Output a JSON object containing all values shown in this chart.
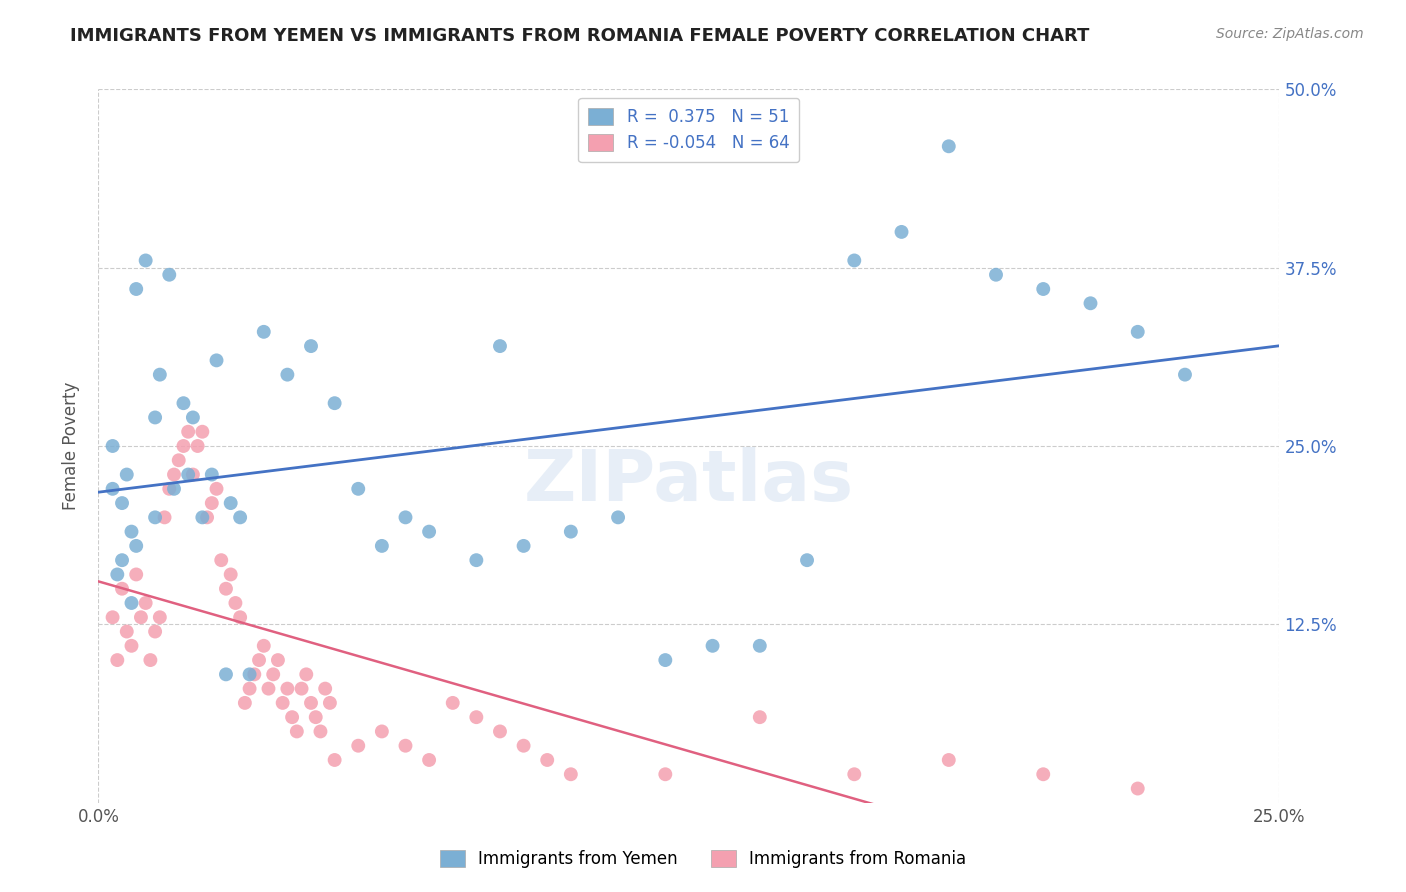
{
  "title": "IMMIGRANTS FROM YEMEN VS IMMIGRANTS FROM ROMANIA FEMALE POVERTY CORRELATION CHART",
  "source": "Source: ZipAtlas.com",
  "ylabel_label": "Female Poverty",
  "xlim": [
    0,
    0.25
  ],
  "ylim": [
    0,
    0.5
  ],
  "ytick_values": [
    0.125,
    0.25,
    0.375,
    0.5
  ],
  "xtick_values": [
    0.0,
    0.25
  ],
  "grid_color": "#cccccc",
  "background_color": "#ffffff",
  "watermark": "ZIPatlas",
  "legend_r1": "R =  0.375",
  "legend_n1": "N = 51",
  "legend_r2": "R = -0.054",
  "legend_n2": "N = 64",
  "blue_color": "#7bafd4",
  "pink_color": "#f4a0b0",
  "blue_line_color": "#4472c4",
  "pink_line_color": "#e06080",
  "title_color": "#222222",
  "right_tick_color": "#4472c4",
  "yemen_x": [
    0.005,
    0.007,
    0.003,
    0.008,
    0.012,
    0.005,
    0.006,
    0.004,
    0.003,
    0.007,
    0.008,
    0.01,
    0.015,
    0.012,
    0.02,
    0.018,
    0.025,
    0.022,
    0.03,
    0.028,
    0.035,
    0.04,
    0.045,
    0.05,
    0.055,
    0.06,
    0.065,
    0.07,
    0.08,
    0.085,
    0.09,
    0.1,
    0.11,
    0.12,
    0.13,
    0.14,
    0.15,
    0.16,
    0.17,
    0.18,
    0.19,
    0.2,
    0.21,
    0.22,
    0.23,
    0.013,
    0.016,
    0.019,
    0.024,
    0.027,
    0.032
  ],
  "yemen_y": [
    0.21,
    0.19,
    0.22,
    0.18,
    0.2,
    0.17,
    0.23,
    0.16,
    0.25,
    0.14,
    0.36,
    0.38,
    0.37,
    0.27,
    0.27,
    0.28,
    0.31,
    0.2,
    0.2,
    0.21,
    0.33,
    0.3,
    0.32,
    0.28,
    0.22,
    0.18,
    0.2,
    0.19,
    0.17,
    0.32,
    0.18,
    0.19,
    0.2,
    0.1,
    0.11,
    0.11,
    0.17,
    0.38,
    0.4,
    0.46,
    0.37,
    0.36,
    0.35,
    0.33,
    0.3,
    0.3,
    0.22,
    0.23,
    0.23,
    0.09,
    0.09
  ],
  "romania_x": [
    0.003,
    0.004,
    0.005,
    0.006,
    0.007,
    0.008,
    0.009,
    0.01,
    0.011,
    0.012,
    0.013,
    0.014,
    0.015,
    0.016,
    0.017,
    0.018,
    0.019,
    0.02,
    0.021,
    0.022,
    0.023,
    0.024,
    0.025,
    0.026,
    0.027,
    0.028,
    0.029,
    0.03,
    0.031,
    0.032,
    0.033,
    0.034,
    0.035,
    0.036,
    0.037,
    0.038,
    0.039,
    0.04,
    0.041,
    0.042,
    0.043,
    0.044,
    0.045,
    0.046,
    0.047,
    0.048,
    0.049,
    0.05,
    0.055,
    0.06,
    0.065,
    0.07,
    0.075,
    0.08,
    0.085,
    0.09,
    0.095,
    0.1,
    0.12,
    0.14,
    0.16,
    0.18,
    0.2,
    0.22
  ],
  "romania_y": [
    0.13,
    0.1,
    0.15,
    0.12,
    0.11,
    0.16,
    0.13,
    0.14,
    0.1,
    0.12,
    0.13,
    0.2,
    0.22,
    0.23,
    0.24,
    0.25,
    0.26,
    0.23,
    0.25,
    0.26,
    0.2,
    0.21,
    0.22,
    0.17,
    0.15,
    0.16,
    0.14,
    0.13,
    0.07,
    0.08,
    0.09,
    0.1,
    0.11,
    0.08,
    0.09,
    0.1,
    0.07,
    0.08,
    0.06,
    0.05,
    0.08,
    0.09,
    0.07,
    0.06,
    0.05,
    0.08,
    0.07,
    0.03,
    0.04,
    0.05,
    0.04,
    0.03,
    0.07,
    0.06,
    0.05,
    0.04,
    0.03,
    0.02,
    0.02,
    0.06,
    0.02,
    0.03,
    0.02,
    0.01
  ]
}
